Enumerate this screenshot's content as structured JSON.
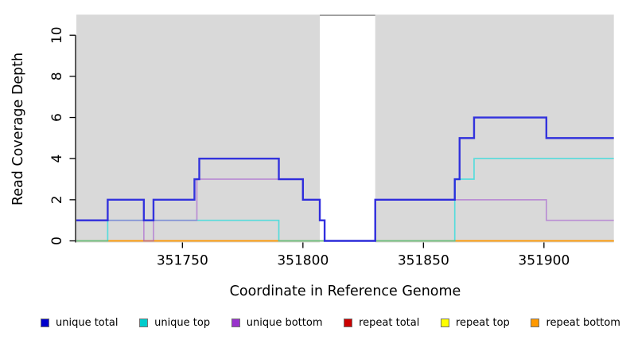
{
  "chart_data": {
    "type": "line",
    "subtype": "step-coverage",
    "title": "",
    "xlabel": "Coordinate in Reference Genome",
    "ylabel": "Read Coverage Depth",
    "xlim": [
      351706,
      351929
    ],
    "ylim": [
      0,
      11
    ],
    "x_ticks": [
      351750,
      351800,
      351850,
      351900
    ],
    "y_ticks": [
      0,
      2,
      4,
      6,
      8,
      10
    ],
    "grid": false,
    "legend_position": "bottom",
    "background_regions": {
      "covered_color": "#d9d9d9",
      "gap_border_color": "#999999",
      "covered": [
        [
          351706,
          351807
        ],
        [
          351830,
          351929
        ]
      ],
      "gap": [
        [
          351807,
          351830
        ]
      ]
    },
    "series": [
      {
        "name": "repeat total",
        "color": "#dd0000",
        "opacity": 0.55,
        "width": 1.6,
        "points": [
          [
            351706,
            0
          ],
          [
            351929,
            0
          ]
        ]
      },
      {
        "name": "repeat top",
        "color": "#ffee00",
        "opacity": 0.55,
        "width": 1.6,
        "points": [
          [
            351706,
            0
          ],
          [
            351929,
            0
          ]
        ]
      },
      {
        "name": "repeat bottom",
        "color": "#ff9900",
        "opacity": 0.95,
        "width": 1.8,
        "points": [
          [
            351706,
            0
          ],
          [
            351929,
            0
          ]
        ]
      },
      {
        "name": "unique top",
        "color": "#00dede",
        "opacity": 0.6,
        "width": 1.7,
        "points": [
          [
            351706,
            0
          ],
          [
            351719,
            1
          ],
          [
            351790,
            0
          ],
          [
            351863,
            3
          ],
          [
            351871,
            4
          ],
          [
            351929,
            4
          ]
        ]
      },
      {
        "name": "unique bottom",
        "color": "#a050d0",
        "opacity": 0.55,
        "width": 1.7,
        "points": [
          [
            351706,
            1
          ],
          [
            351734,
            0
          ],
          [
            351738,
            1
          ],
          [
            351756,
            3
          ],
          [
            351800,
            2
          ],
          [
            351807,
            1
          ],
          [
            351809,
            0
          ],
          [
            351830,
            2
          ],
          [
            351901,
            1
          ],
          [
            351929,
            1
          ]
        ]
      },
      {
        "name": "unique total",
        "color": "#2020dd",
        "opacity": 0.9,
        "width": 2.4,
        "points": [
          [
            351706,
            1
          ],
          [
            351719,
            2
          ],
          [
            351734,
            1
          ],
          [
            351738,
            2
          ],
          [
            351755,
            3
          ],
          [
            351757,
            4
          ],
          [
            351790,
            3
          ],
          [
            351800,
            2
          ],
          [
            351807,
            1
          ],
          [
            351809,
            0
          ],
          [
            351830,
            2
          ],
          [
            351863,
            3
          ],
          [
            351865,
            5
          ],
          [
            351871,
            6
          ],
          [
            351901,
            5
          ],
          [
            351929,
            5
          ]
        ]
      }
    ],
    "legend": [
      {
        "label": "unique total",
        "color": "#0000cc"
      },
      {
        "label": "unique top",
        "color": "#00cccc"
      },
      {
        "label": "unique bottom",
        "color": "#9933cc"
      },
      {
        "label": "repeat total",
        "color": "#cc0000"
      },
      {
        "label": "repeat top",
        "color": "#ffff00"
      },
      {
        "label": "repeat bottom",
        "color": "#ff9900"
      }
    ]
  }
}
